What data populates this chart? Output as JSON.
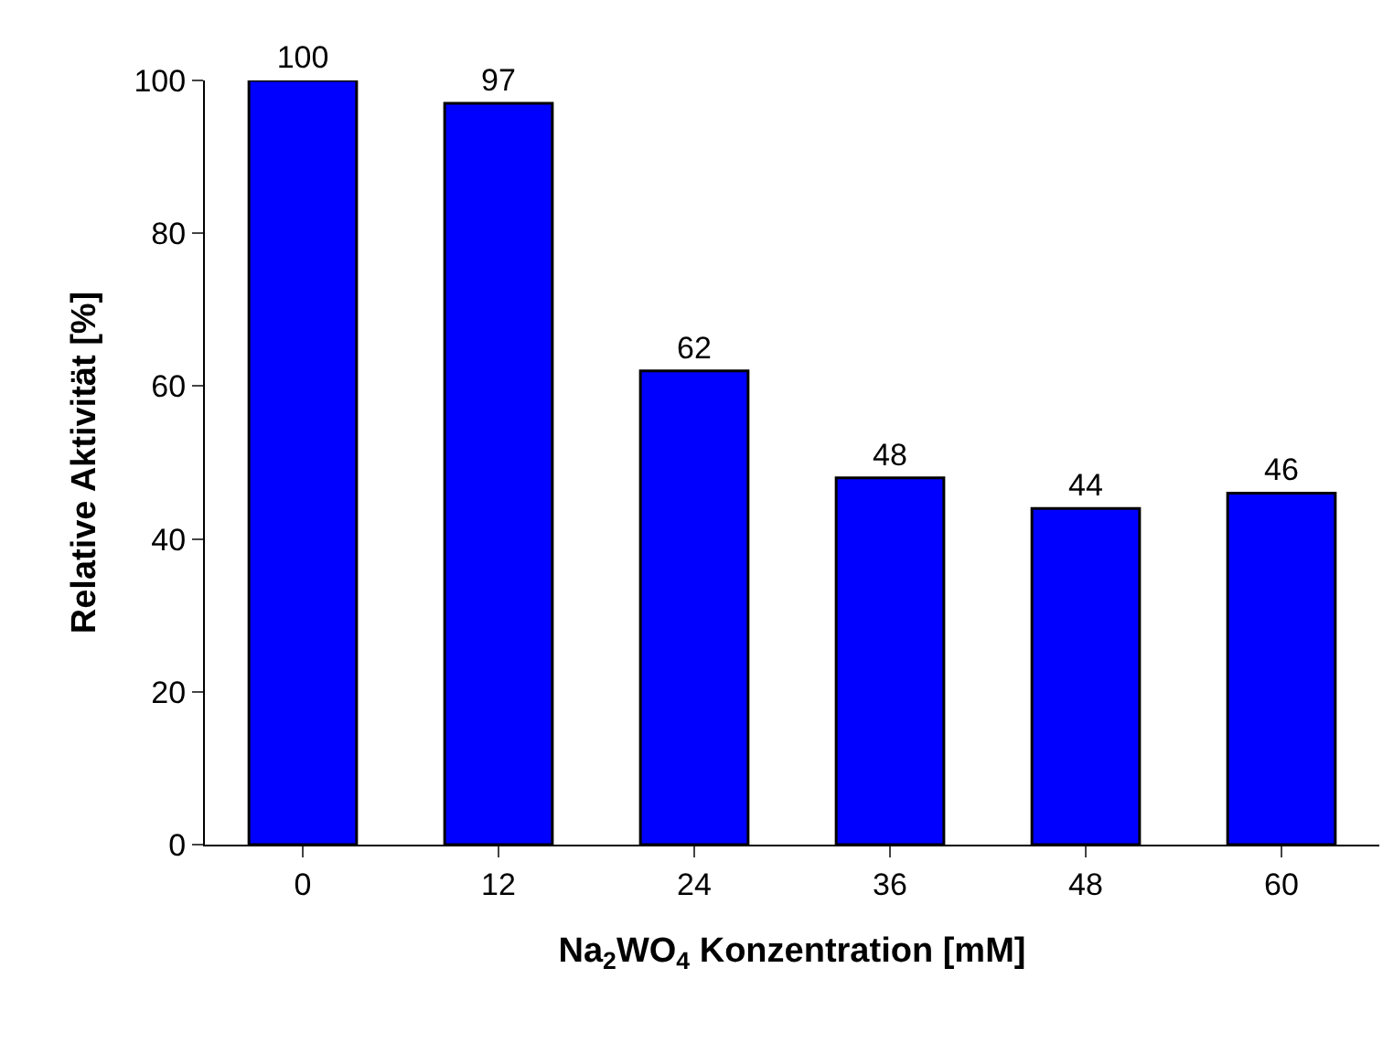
{
  "chart_data": {
    "type": "bar",
    "xlabel": "Na$_{2}$WO$_{4}$ Konzentration [mM]",
    "ylabel": "Relative Aktivität [%]",
    "categories": [
      "0",
      "12",
      "24",
      "36",
      "48",
      "60"
    ],
    "values": [
      100,
      97,
      62,
      48,
      44,
      46
    ],
    "color": "#0000ff",
    "ylim": [
      0,
      100
    ],
    "yticks": [
      0,
      20,
      40,
      60,
      80,
      100
    ],
    "data_labels": true
  }
}
